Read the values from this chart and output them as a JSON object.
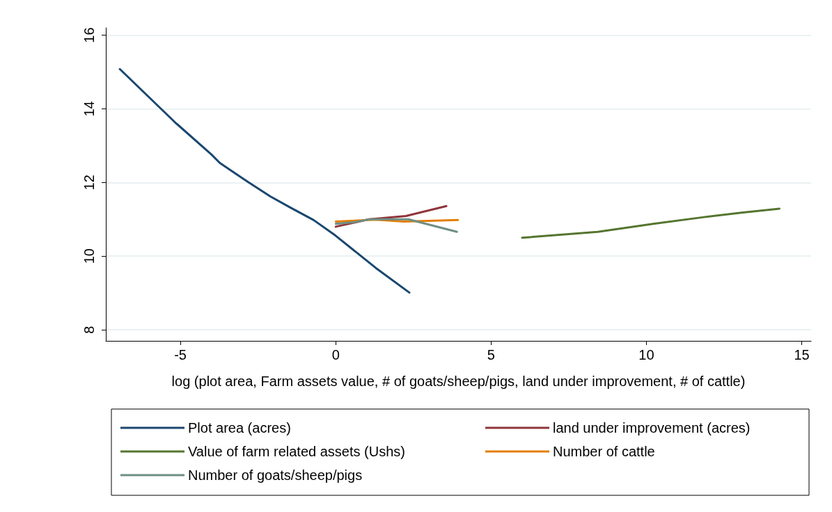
{
  "chart_data": {
    "type": "line",
    "xlabel": "log (plot area, Farm assets value, # of goats/sheep/pigs, land under improvement, # of cattle)",
    "xlim": [
      -7.4,
      15.3
    ],
    "xticks": [
      -5,
      0,
      5,
      10,
      15
    ],
    "ylim": [
      7.7,
      16.2
    ],
    "yticks": [
      8,
      10,
      12,
      14,
      16
    ],
    "grid": "y",
    "legend": "bottom",
    "marker": "none",
    "line_style": "solid",
    "series": [
      {
        "name": "Plot area (acres)",
        "color": "#1a476f",
        "x": [
          -6.95,
          -5.18,
          -4.0,
          -3.73,
          -2.8,
          -2.1,
          -1.46,
          -0.71,
          -0.01,
          1.29,
          2.37
        ],
        "values": [
          15.08,
          13.64,
          12.76,
          12.53,
          12.0,
          11.62,
          11.32,
          10.98,
          10.56,
          9.68,
          9.01
        ]
      },
      {
        "name": "land under improvement (acres)",
        "color": "#90353b",
        "x": [
          0,
          1.07,
          2.26,
          3.56
        ],
        "values": [
          10.8,
          11.0,
          11.09,
          11.36
        ]
      },
      {
        "name": "Value of farm related assets (Ushs)",
        "color": "#55752f",
        "x": [
          6.0,
          8.44,
          10.22,
          11.85,
          13.05,
          14.28
        ],
        "values": [
          10.5,
          10.66,
          10.88,
          11.06,
          11.18,
          11.29
        ]
      },
      {
        "name": "Number of cattle",
        "color": "#e37e00",
        "x": [
          0,
          1.29,
          2.19,
          3.93
        ],
        "values": [
          10.94,
          10.99,
          10.94,
          10.98
        ]
      },
      {
        "name": "Number of goats/sheep/pigs",
        "color": "#6e8e84",
        "x": [
          0,
          0.66,
          1.07,
          2.34,
          3.9
        ],
        "values": [
          10.88,
          10.93,
          11.0,
          11.0,
          10.66
        ]
      }
    ]
  }
}
